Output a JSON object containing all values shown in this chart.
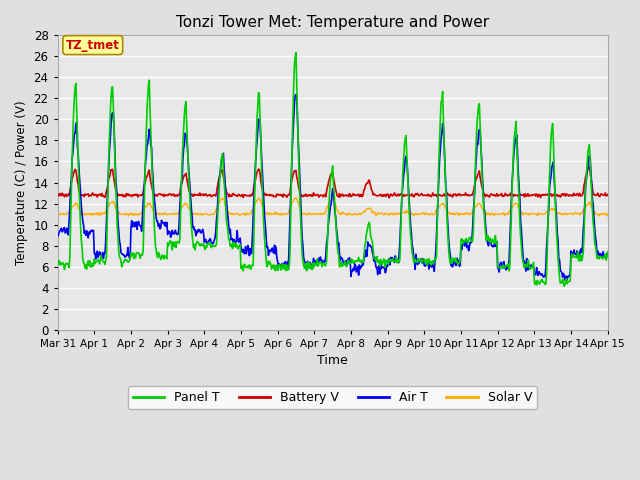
{
  "title": "Tonzi Tower Met: Temperature and Power",
  "xlabel": "Time",
  "ylabel": "Temperature (C) / Power (V)",
  "ylim": [
    0,
    28
  ],
  "yticks": [
    0,
    2,
    4,
    6,
    8,
    10,
    12,
    14,
    16,
    18,
    20,
    22,
    24,
    26,
    28
  ],
  "bg_color": "#e0e0e0",
  "plot_bg_color": "#e8e8e8",
  "grid_color": "#ffffff",
  "legend_labels": [
    "Panel T",
    "Battery V",
    "Air T",
    "Solar V"
  ],
  "legend_colors": [
    "#00cc00",
    "#cc0000",
    "#0000ee",
    "#ffaa00"
  ],
  "tz_label": "TZ_tmet",
  "tz_bg": "#ffff99",
  "tz_border": "#aa8800",
  "tz_text_color": "#cc0000",
  "line_colors": {
    "panel_t": "#00cc00",
    "battery_v": "#cc0000",
    "air_t": "#0000ee",
    "solar_v": "#ffaa00"
  },
  "xtick_labels": [
    "Mar 31",
    "Apr 1",
    "Apr 2",
    "Apr 3",
    "Apr 4",
    "Apr 5",
    "Apr 6",
    "Apr 7",
    "Apr 8",
    "Apr 9",
    "Apr 10",
    "Apr 11",
    "Apr 12",
    "Apr 13",
    "Apr 14",
    "Apr 15"
  ],
  "figsize": [
    6.4,
    4.8
  ],
  "dpi": 100
}
